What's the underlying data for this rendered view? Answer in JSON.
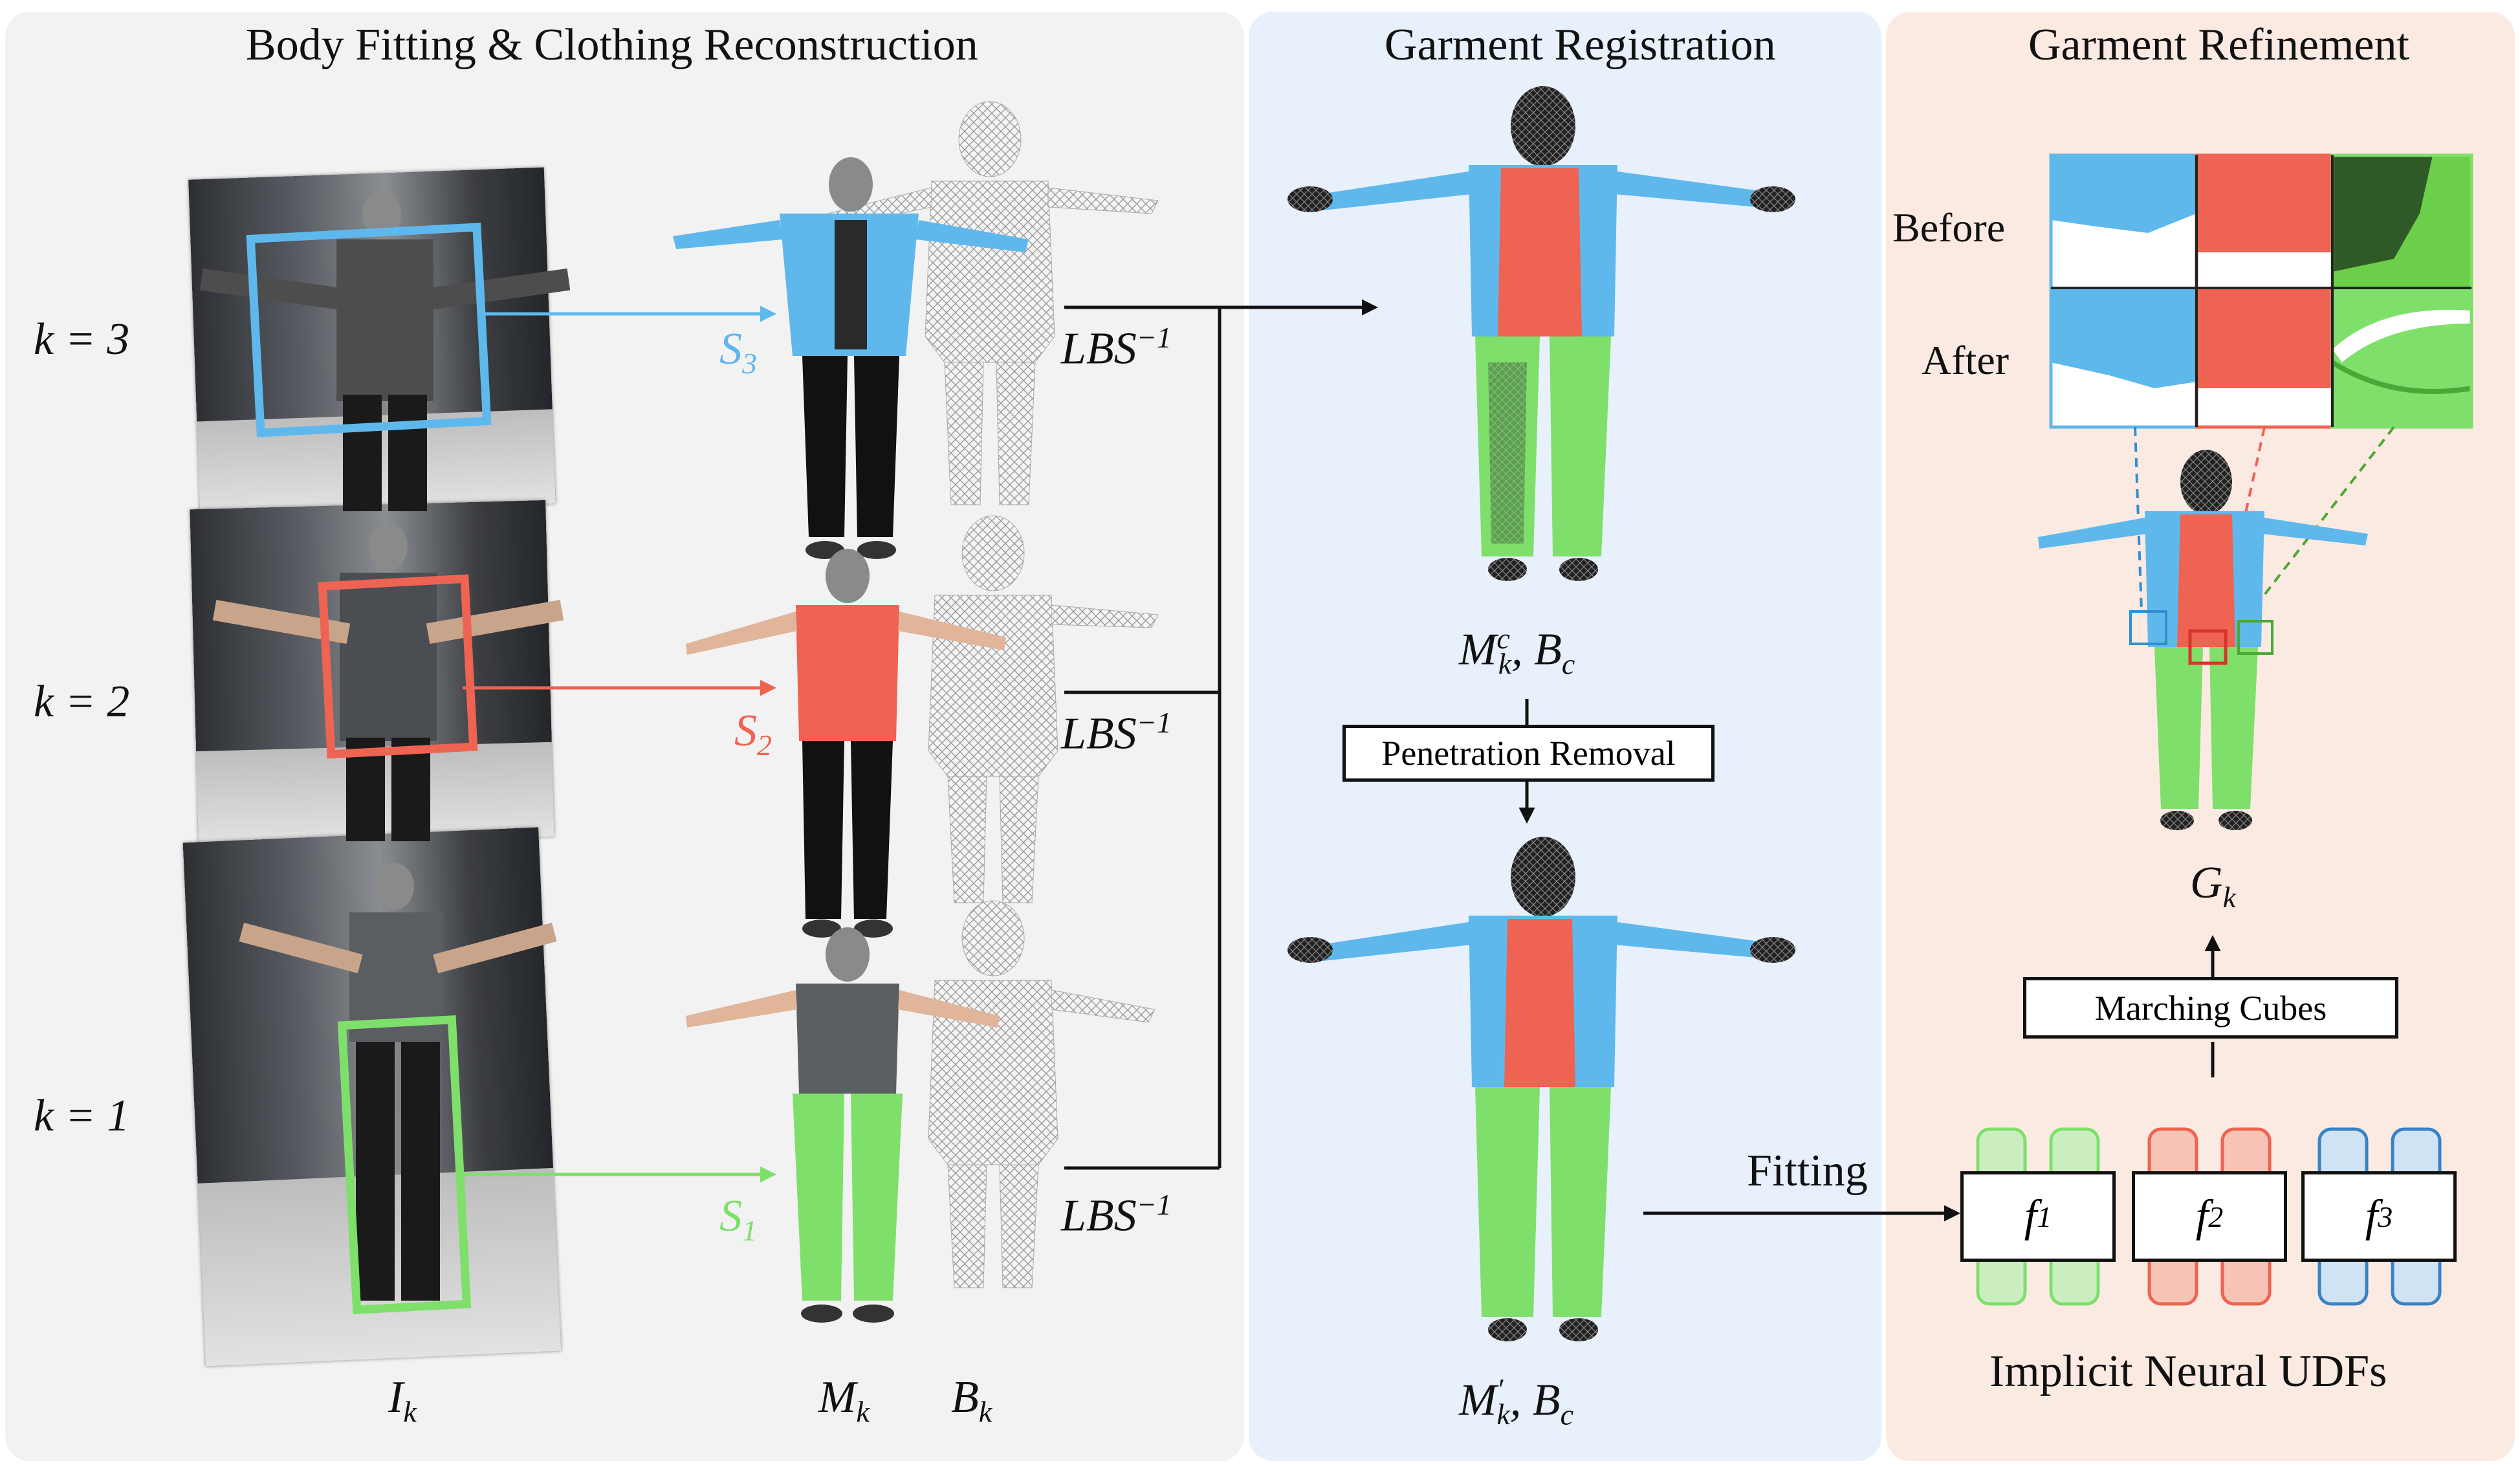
{
  "sections": {
    "body_fitting": "Body Fitting & Clothing Reconstruction",
    "registration": "Garment Registration",
    "refinement": "Garment Refinement"
  },
  "rows": [
    {
      "k": "k = 3",
      "segment": "S",
      "segment_sub": "3",
      "lbs": "LBS",
      "lbs_sup": "−1",
      "color": "#5fb8ec"
    },
    {
      "k": "k = 2",
      "segment": "S",
      "segment_sub": "2",
      "lbs": "LBS",
      "lbs_sup": "−1",
      "color": "#ee6352"
    },
    {
      "k": "k = 1",
      "segment": "S",
      "segment_sub": "1",
      "lbs": "LBS",
      "lbs_sup": "−1",
      "color": "#7ee06a"
    }
  ],
  "labels": {
    "input_images": {
      "main": "I",
      "sub": "k"
    },
    "clothed_mesh": {
      "main": "M",
      "sub": "k"
    },
    "body_mesh": {
      "main": "B",
      "sub": "k"
    },
    "canonical_mesh": {
      "main": "M",
      "sub": "k",
      "sup": "c",
      "rest": ", B",
      "rest_sub": "c"
    },
    "refined_mesh": {
      "main": "M",
      "sub": "k",
      "sup": "′",
      "rest": ", B",
      "rest_sub": "c"
    },
    "garment_output": {
      "main": "G",
      "sub": "k"
    },
    "fitting": "Fitting",
    "before": "Before",
    "after": "After",
    "udfs_caption": "Implicit Neural UDFs"
  },
  "boxes": {
    "penetration_removal": "Penetration Removal",
    "marching_cubes": "Marching Cubes"
  },
  "udfs": [
    {
      "main": "f",
      "sub": "1",
      "color": "#7ee06a"
    },
    {
      "main": "f",
      "sub": "2",
      "color": "#ee6352"
    },
    {
      "main": "f",
      "sub": "3",
      "color": "#5fb8ec"
    }
  ],
  "colors": {
    "jacket": "#5fb8ec",
    "shirt": "#ee6352",
    "pants": "#7ee06a",
    "panel_left": "#f2f2f2",
    "panel_mid": "#e8f0fb",
    "panel_right": "#fbeae2"
  }
}
